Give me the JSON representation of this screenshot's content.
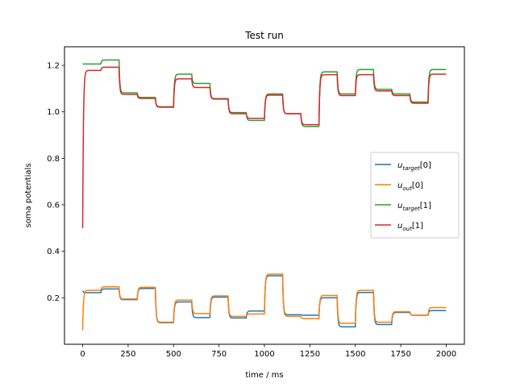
{
  "chart_data": {
    "type": "line",
    "title": "Test run",
    "xlabel": "time / ms",
    "ylabel": "soma potentials",
    "xlim": [
      -100,
      2100
    ],
    "ylim": [
      0.0,
      1.28
    ],
    "xticks": [
      0,
      250,
      500,
      750,
      1000,
      1250,
      1500,
      1750,
      2000
    ],
    "xtick_labels": [
      "0",
      "250",
      "500",
      "750",
      "1000",
      "1250",
      "1500",
      "1750",
      "2000"
    ],
    "yticks": [
      0.2,
      0.4,
      0.6,
      0.8,
      1.0,
      1.2
    ],
    "ytick_labels": [
      "0.2",
      "0.4",
      "0.6",
      "0.8",
      "1.0",
      "1.2"
    ],
    "grid": false,
    "legend_position": "center-right",
    "steps": [
      0,
      100,
      200,
      300,
      400,
      500,
      600,
      700,
      800,
      900,
      1000,
      1100,
      1200,
      1300,
      1400,
      1500,
      1600,
      1700,
      1800,
      1900,
      2000
    ],
    "series": [
      {
        "name": "u_target[0]",
        "legend_main": "u",
        "legend_sub": "target",
        "legend_idx": "[0]",
        "color": "#1f77b4",
        "initial": 0.23,
        "levels": [
          0.222,
          0.238,
          0.192,
          0.24,
          0.093,
          0.182,
          0.115,
          0.203,
          0.113,
          0.143,
          0.295,
          0.127,
          0.125,
          0.2,
          0.075,
          0.223,
          0.085,
          0.137,
          0.125,
          0.145
        ]
      },
      {
        "name": "u_out[0]",
        "legend_main": "u",
        "legend_sub": "out",
        "legend_idx": "[0]",
        "color": "#ff7f0e",
        "initial": 0.06,
        "levels": [
          0.232,
          0.247,
          0.195,
          0.245,
          0.095,
          0.19,
          0.132,
          0.208,
          0.12,
          0.13,
          0.302,
          0.12,
          0.11,
          0.21,
          0.09,
          0.232,
          0.095,
          0.14,
          0.125,
          0.158
        ]
      },
      {
        "name": "u_target[1]",
        "legend_main": "u",
        "legend_sub": "target",
        "legend_idx": "[1]",
        "color": "#2ca02c",
        "initial": 1.206,
        "levels": [
          1.206,
          1.223,
          1.082,
          1.062,
          1.022,
          1.162,
          1.122,
          1.057,
          0.997,
          0.963,
          1.077,
          0.992,
          0.937,
          1.172,
          1.077,
          1.182,
          1.097,
          1.077,
          1.042,
          1.182
        ]
      },
      {
        "name": "u_out[1]",
        "legend_main": "u",
        "legend_sub": "out",
        "legend_idx": "[1]",
        "color": "#d62728",
        "initial": 0.5,
        "levels": [
          1.178,
          1.192,
          1.075,
          1.058,
          1.02,
          1.142,
          1.105,
          1.055,
          0.992,
          0.972,
          1.072,
          0.992,
          0.945,
          1.16,
          1.07,
          1.16,
          1.09,
          1.07,
          1.037,
          1.162
        ]
      }
    ]
  }
}
